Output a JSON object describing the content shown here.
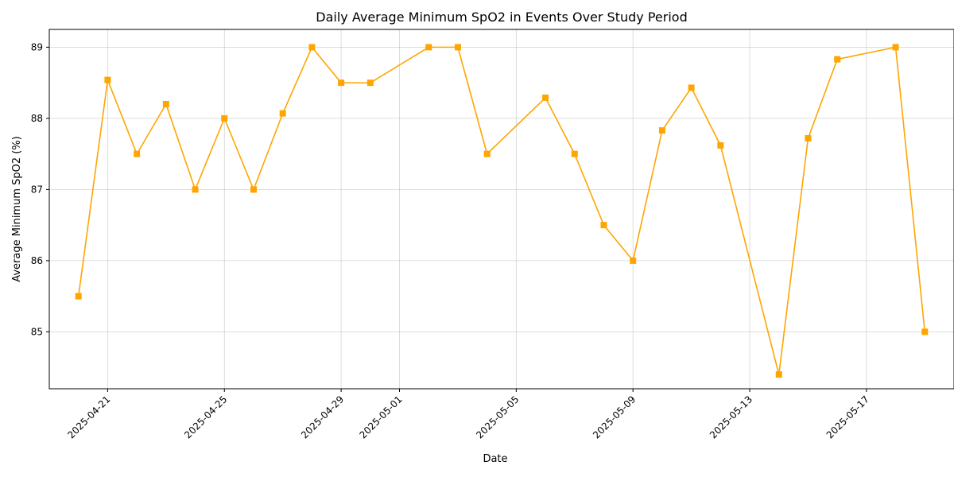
{
  "chart_data": {
    "type": "line",
    "title": "Daily Average Minimum SpO2 in Events Over Study Period",
    "xlabel": "Date",
    "ylabel": "Average Minimum SpO2 (%)",
    "xlim": [
      "2025-04-19",
      "2025-05-20"
    ],
    "ylim": [
      84.2,
      89.25
    ],
    "x_ticks": [
      "2025-04-21",
      "2025-04-25",
      "2025-04-29",
      "2025-05-01",
      "2025-05-05",
      "2025-05-09",
      "2025-05-13",
      "2025-05-17"
    ],
    "y_ticks": [
      85,
      86,
      87,
      88,
      89
    ],
    "grid": true,
    "series": [
      {
        "color": "#FFA500",
        "marker": "square",
        "x": [
          "2025-04-20",
          "2025-04-21",
          "2025-04-22",
          "2025-04-23",
          "2025-04-24",
          "2025-04-25",
          "2025-04-26",
          "2025-04-27",
          "2025-04-28",
          "2025-04-29",
          "2025-04-30",
          "2025-05-02",
          "2025-05-03",
          "2025-05-04",
          "2025-05-06",
          "2025-05-07",
          "2025-05-08",
          "2025-05-09",
          "2025-05-10",
          "2025-05-11",
          "2025-05-12",
          "2025-05-14",
          "2025-05-15",
          "2025-05-16",
          "2025-05-18",
          "2025-05-19"
        ],
        "y": [
          85.5,
          88.54,
          87.5,
          88.2,
          87.0,
          88.0,
          87.0,
          88.07,
          89.0,
          88.5,
          88.5,
          89.0,
          89.0,
          87.5,
          88.29,
          87.5,
          86.5,
          86.0,
          87.83,
          88.43,
          87.62,
          84.4,
          87.72,
          88.83,
          89.0,
          85.0
        ]
      }
    ]
  }
}
